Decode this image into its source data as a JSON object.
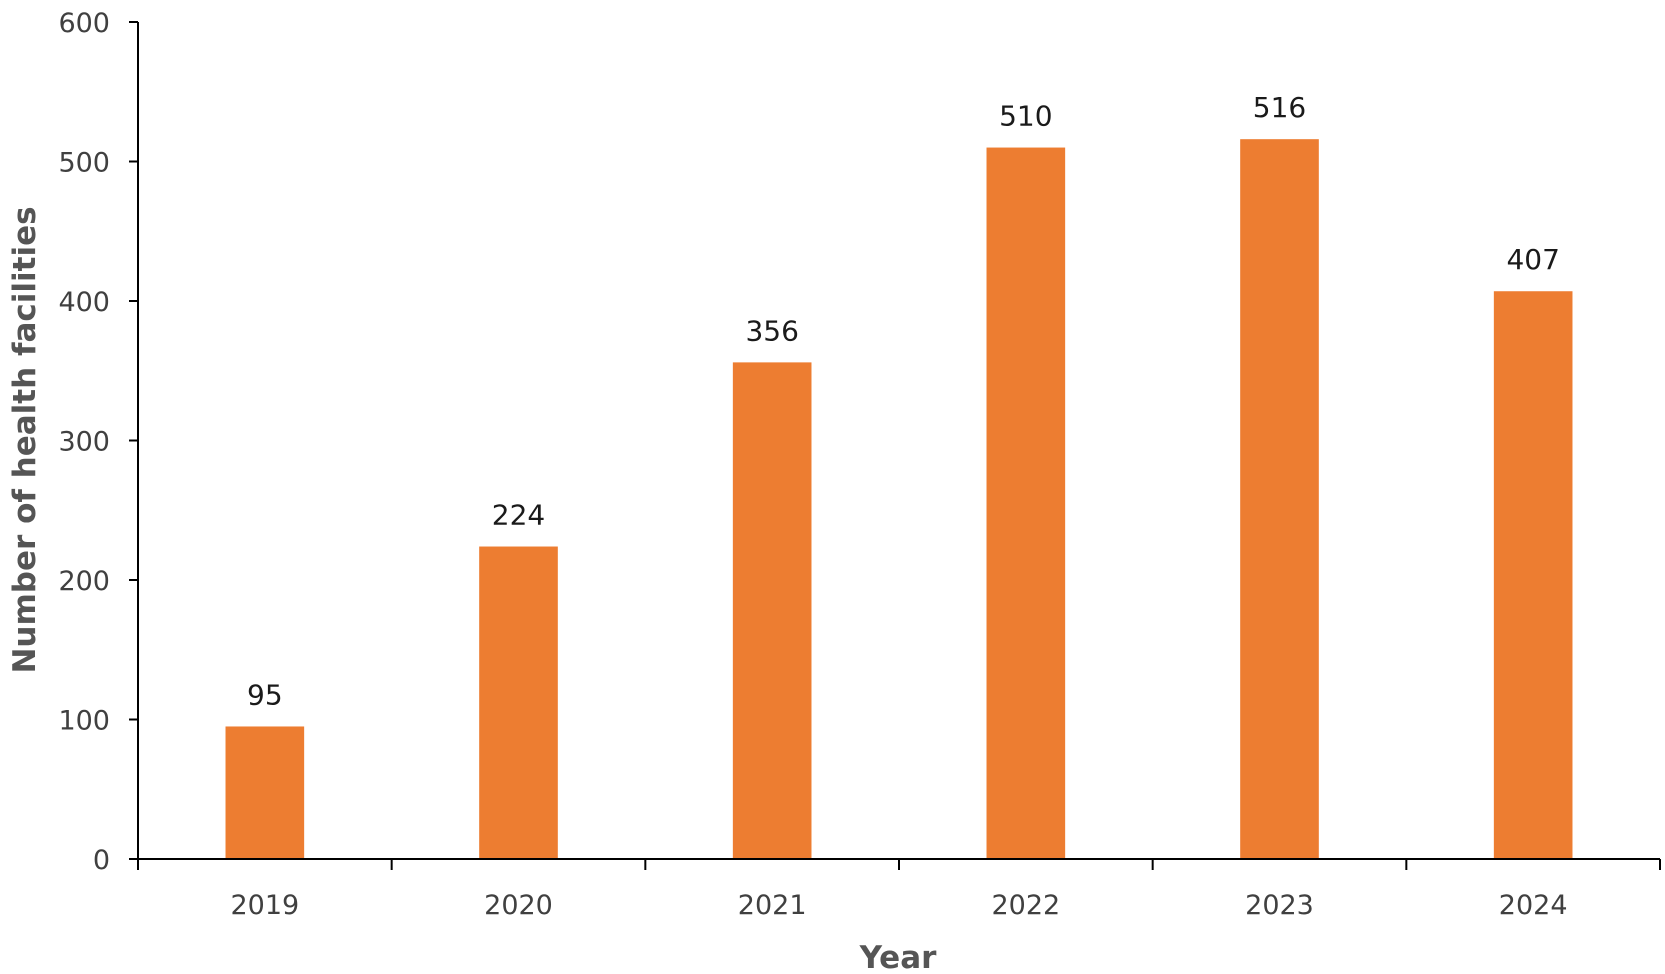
{
  "chart_data": {
    "type": "bar",
    "title": "",
    "xlabel": "Year",
    "ylabel": "Number of health facilities",
    "categories": [
      "2019",
      "2020",
      "2021",
      "2022",
      "2023",
      "2024"
    ],
    "values": [
      95,
      224,
      356,
      510,
      516,
      407
    ],
    "data_labels": [
      "95",
      "224",
      "356",
      "510",
      "516",
      "407"
    ],
    "ylim": [
      0,
      600
    ],
    "yticks": [
      0,
      100,
      200,
      300,
      400,
      500,
      600
    ],
    "ytick_labels": [
      "0",
      "100",
      "200",
      "300",
      "400",
      "500",
      "600"
    ],
    "grid": false,
    "legend": "none",
    "bar_color": "#ED7D31",
    "axis_color": "#000000"
  }
}
